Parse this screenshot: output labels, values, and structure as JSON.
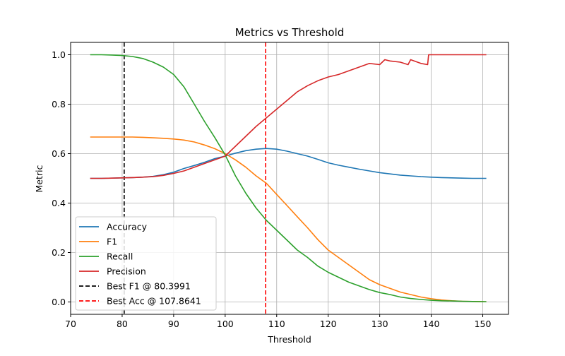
{
  "chart_data": {
    "type": "line",
    "title": "Metrics vs Threshold",
    "xlabel": "Threshold",
    "ylabel": "Metric",
    "xlim": [
      70,
      155
    ],
    "ylim": [
      -0.05,
      1.05
    ],
    "xticks": [
      70,
      80,
      90,
      100,
      110,
      120,
      130,
      140,
      150
    ],
    "xtick_labels": [
      "70",
      "80",
      "90",
      "100",
      "110",
      "120",
      "130",
      "140",
      "150"
    ],
    "yticks": [
      0.0,
      0.2,
      0.4,
      0.6,
      0.8,
      1.0
    ],
    "ytick_labels": [
      "0.0",
      "0.2",
      "0.4",
      "0.6",
      "0.8",
      "1.0"
    ],
    "grid": true,
    "legend_position": "lower-left",
    "series": [
      {
        "name": "Accuracy",
        "color": "#1f77b4",
        "x": [
          73.8,
          76,
          78,
          80,
          82,
          84,
          86,
          88,
          90,
          92,
          94,
          96,
          98,
          100,
          102,
          104,
          106,
          108,
          110,
          112,
          114,
          116,
          118,
          120,
          122,
          124,
          126,
          128,
          130,
          132,
          134,
          136,
          138,
          140,
          142,
          144,
          146,
          148,
          150.7
        ],
        "y": [
          0.5,
          0.5,
          0.501,
          0.502,
          0.503,
          0.505,
          0.508,
          0.515,
          0.525,
          0.54,
          0.552,
          0.565,
          0.58,
          0.59,
          0.602,
          0.612,
          0.618,
          0.621,
          0.618,
          0.61,
          0.6,
          0.59,
          0.577,
          0.563,
          0.553,
          0.545,
          0.537,
          0.53,
          0.523,
          0.518,
          0.513,
          0.51,
          0.507,
          0.505,
          0.503,
          0.502,
          0.501,
          0.5,
          0.5
        ]
      },
      {
        "name": "F1",
        "color": "#ff7f0e",
        "x": [
          73.8,
          76,
          78,
          80,
          82,
          84,
          86,
          88,
          90,
          92,
          94,
          96,
          98,
          100,
          102,
          104,
          106,
          108,
          110,
          112,
          114,
          116,
          118,
          120,
          122,
          124,
          126,
          128,
          130,
          132,
          134,
          136,
          138,
          140,
          142,
          144,
          146,
          148,
          150.7
        ],
        "y": [
          0.667,
          0.667,
          0.667,
          0.667,
          0.667,
          0.666,
          0.664,
          0.662,
          0.659,
          0.655,
          0.647,
          0.635,
          0.62,
          0.6,
          0.575,
          0.545,
          0.51,
          0.48,
          0.435,
          0.39,
          0.345,
          0.3,
          0.252,
          0.21,
          0.18,
          0.15,
          0.12,
          0.09,
          0.07,
          0.055,
          0.04,
          0.03,
          0.02,
          0.013,
          0.008,
          0.005,
          0.003,
          0.002,
          0.001
        ]
      },
      {
        "name": "Recall",
        "color": "#2ca02c",
        "x": [
          73.8,
          76,
          78,
          80,
          82,
          84,
          86,
          88,
          90,
          92,
          94,
          96,
          98,
          100,
          102,
          104,
          106,
          108,
          110,
          112,
          114,
          116,
          118,
          120,
          122,
          124,
          126,
          128,
          130,
          132,
          134,
          136,
          138,
          140,
          142,
          144,
          146,
          148,
          150.7
        ],
        "y": [
          1.0,
          1.0,
          0.999,
          0.997,
          0.993,
          0.985,
          0.97,
          0.95,
          0.92,
          0.87,
          0.8,
          0.73,
          0.665,
          0.595,
          0.51,
          0.44,
          0.38,
          0.33,
          0.29,
          0.25,
          0.21,
          0.18,
          0.145,
          0.12,
          0.1,
          0.08,
          0.065,
          0.05,
          0.038,
          0.03,
          0.02,
          0.014,
          0.01,
          0.007,
          0.005,
          0.004,
          0.003,
          0.002,
          0.001
        ]
      },
      {
        "name": "Precision",
        "color": "#d62728",
        "x": [
          73.8,
          76,
          78,
          80,
          82,
          84,
          86,
          88,
          90,
          92,
          94,
          96,
          98,
          100,
          102,
          104,
          106,
          108,
          110,
          112,
          114,
          116,
          118,
          120,
          122,
          124,
          126,
          128,
          130,
          131,
          132,
          134,
          135.5,
          136,
          138,
          139.3,
          139.5,
          140,
          142,
          144,
          146,
          148,
          150.7
        ],
        "y": [
          0.5,
          0.5,
          0.501,
          0.502,
          0.503,
          0.505,
          0.507,
          0.512,
          0.52,
          0.53,
          0.545,
          0.56,
          0.575,
          0.59,
          0.63,
          0.67,
          0.71,
          0.745,
          0.78,
          0.815,
          0.85,
          0.875,
          0.895,
          0.91,
          0.92,
          0.935,
          0.95,
          0.965,
          0.96,
          0.98,
          0.975,
          0.97,
          0.96,
          0.98,
          0.965,
          0.96,
          1.0,
          1.0,
          1.0,
          1.0,
          1.0,
          1.0,
          1.0
        ]
      },
      {
        "name": "Best F1 @ 80.3991",
        "color": "#000000",
        "kind": "vline",
        "x_value": 80.3991,
        "dash": true
      },
      {
        "name": "Best Acc @ 107.8641",
        "color": "#ff0000",
        "kind": "vline",
        "x_value": 107.8641,
        "dash": true
      }
    ]
  }
}
